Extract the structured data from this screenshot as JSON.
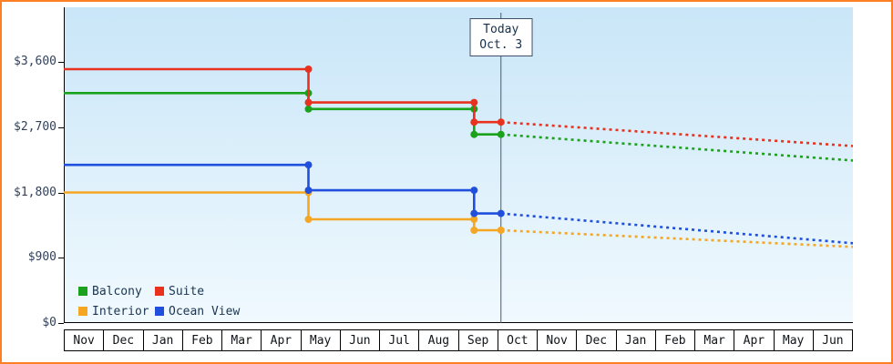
{
  "colors": {
    "frame_border": "#ff7f24",
    "plot_gradient_top": "#c9e6f8",
    "plot_gradient_bottom": "#f0f9fe",
    "today_line": "#4a5a74"
  },
  "chart_data": {
    "type": "line",
    "ylim": [
      0,
      4350
    ],
    "y_axis": {
      "tick_labels": [
        "$0",
        "$900",
        "$1,800",
        "$2,700",
        "$3,600"
      ],
      "tick_values": [
        0,
        900,
        1800,
        2700,
        3600
      ]
    },
    "x_axis": {
      "month_labels": [
        "Nov",
        "Dec",
        "Jan",
        "Feb",
        "Mar",
        "Apr",
        "May",
        "Jun",
        "Jul",
        "Aug",
        "Sep",
        "Oct",
        "Nov",
        "Dec",
        "Jan",
        "Feb",
        "Mar",
        "Apr",
        "May",
        "Jun"
      ]
    },
    "today": {
      "line1": "Today",
      "line2": "Oct. 3",
      "x_index": 11.08
    },
    "series": [
      {
        "name": "Interior",
        "color": "#f5a623",
        "solid_steps": [
          [
            0,
            1800
          ],
          [
            6.2,
            1800
          ],
          [
            6.2,
            1430
          ],
          [
            10.4,
            1430
          ],
          [
            10.4,
            1280
          ],
          [
            11.08,
            1280
          ]
        ],
        "forecast_dashed": [
          [
            11.08,
            1280
          ],
          [
            20,
            1050
          ]
        ]
      },
      {
        "name": "Ocean View",
        "color": "#1f4fdc",
        "solid_steps": [
          [
            0,
            2180
          ],
          [
            6.2,
            2180
          ],
          [
            6.2,
            1830
          ],
          [
            10.4,
            1830
          ],
          [
            10.4,
            1510
          ],
          [
            11.08,
            1510
          ]
        ],
        "forecast_dashed": [
          [
            11.08,
            1510
          ],
          [
            20,
            1100
          ]
        ]
      },
      {
        "name": "Balcony",
        "color": "#1aa21a",
        "solid_steps": [
          [
            0,
            3170
          ],
          [
            6.2,
            3170
          ],
          [
            6.2,
            2950
          ],
          [
            10.4,
            2950
          ],
          [
            10.4,
            2600
          ],
          [
            11.08,
            2600
          ]
        ],
        "forecast_dashed": [
          [
            11.08,
            2600
          ],
          [
            20,
            2240
          ]
        ]
      },
      {
        "name": "Suite",
        "color": "#e8321e",
        "solid_steps": [
          [
            0,
            3500
          ],
          [
            6.2,
            3500
          ],
          [
            6.2,
            3040
          ],
          [
            10.4,
            3040
          ],
          [
            10.4,
            2770
          ],
          [
            11.08,
            2770
          ]
        ],
        "forecast_dashed": [
          [
            11.08,
            2770
          ],
          [
            20,
            2440
          ]
        ]
      }
    ],
    "legend_rows": [
      [
        "Balcony",
        "Suite"
      ],
      [
        "Interior",
        "Ocean View"
      ]
    ]
  }
}
